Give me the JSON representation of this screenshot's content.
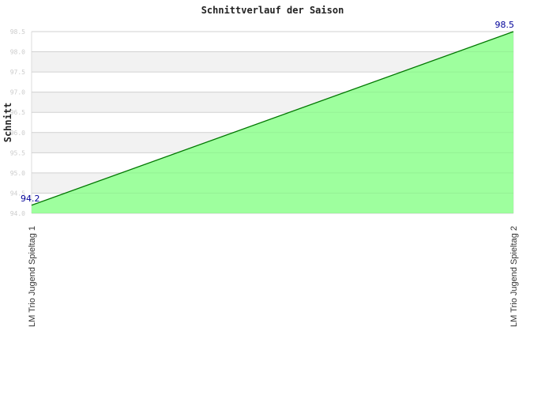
{
  "chart_data": {
    "type": "area",
    "title": "Schnittverlauf der Saison",
    "xlabel": "",
    "ylabel": "Schnitt",
    "categories": [
      "LM Trio Jugend Spieltag 1",
      "LM Trio Jugend Spieltag 2"
    ],
    "values": [
      94.2,
      98.5
    ],
    "data_labels": [
      "94.2",
      "98.5"
    ],
    "ylim": [
      94.0,
      98.5
    ],
    "yticks": [
      "94.0",
      "94.5",
      "95.0",
      "95.5",
      "96.0",
      "96.5",
      "97.0",
      "97.5",
      "98.0",
      "98.5"
    ],
    "grid": true,
    "colors": {
      "fill": "#99ff99",
      "line": "#007700",
      "band": "#f2f2f2",
      "grid": "#dddddd",
      "data_label": "#000099"
    }
  }
}
